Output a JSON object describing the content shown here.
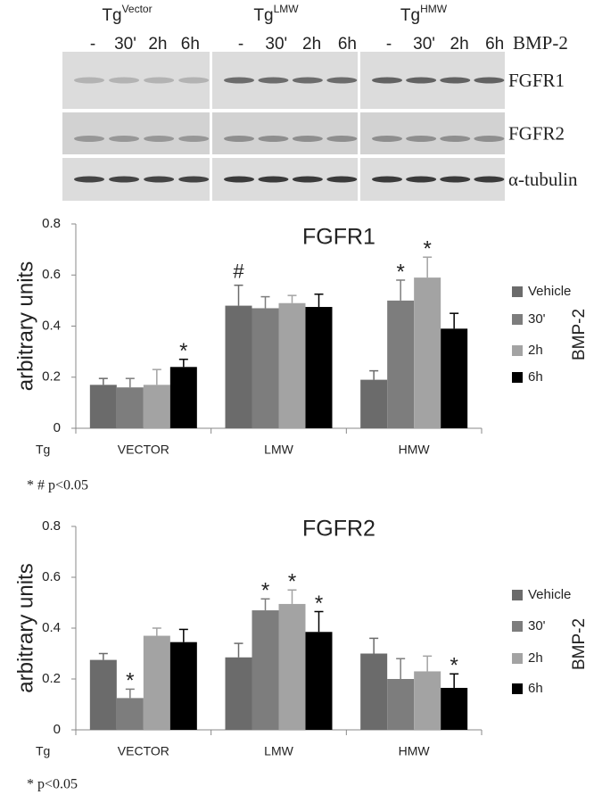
{
  "blot": {
    "groups": [
      {
        "name": "Tg",
        "superscript": "Vector"
      },
      {
        "name": "Tg",
        "superscript": "LMW"
      },
      {
        "name": "Tg",
        "superscript": "HMW"
      }
    ],
    "lanes": [
      "-",
      "30'",
      "2h",
      "6h"
    ],
    "treatment": "BMP-2",
    "rows": [
      "FGFR1",
      "FGFR2",
      "α-tubulin"
    ]
  },
  "chart_data": [
    {
      "type": "bar",
      "title": "FGFR1",
      "y_label": "arbitrary units",
      "x_label": "Tg",
      "categories": [
        "VECTOR",
        "LMW",
        "HMW"
      ],
      "ylim": [
        0,
        0.8
      ],
      "yticks": [
        0,
        0.2,
        0.4,
        0.6,
        0.8
      ],
      "legend_title": "BMP-2",
      "legend": "right",
      "footnote": "* # p<0.05",
      "series": [
        {
          "name": "Vehicle",
          "color": "#6b6b6b",
          "values": [
            0.17,
            0.48,
            0.19
          ],
          "errors": [
            0.025,
            0.08,
            0.035
          ],
          "markers": [
            null,
            "#",
            null
          ]
        },
        {
          "name": "30'",
          "color": "#7d7d7d",
          "values": [
            0.16,
            0.47,
            0.5
          ],
          "errors": [
            0.035,
            0.045,
            0.08
          ],
          "markers": [
            null,
            null,
            "*"
          ]
        },
        {
          "name": "2h",
          "color": "#a3a3a3",
          "values": [
            0.17,
            0.49,
            0.59
          ],
          "errors": [
            0.06,
            0.03,
            0.08
          ],
          "markers": [
            null,
            null,
            "*"
          ]
        },
        {
          "name": "6h",
          "color": "#000000",
          "values": [
            0.24,
            0.475,
            0.39
          ],
          "errors": [
            0.03,
            0.05,
            0.06
          ],
          "markers": [
            "*",
            null,
            null
          ]
        }
      ]
    },
    {
      "type": "bar",
      "title": "FGFR2",
      "y_label": "arbitrary units",
      "x_label": "Tg",
      "categories": [
        "VECTOR",
        "LMW",
        "HMW"
      ],
      "ylim": [
        0,
        0.8
      ],
      "yticks": [
        0,
        0.2,
        0.4,
        0.6,
        0.8
      ],
      "legend_title": "BMP-2",
      "legend": "right",
      "footnote": "* p<0.05",
      "series": [
        {
          "name": "Vehicle",
          "color": "#6b6b6b",
          "values": [
            0.275,
            0.285,
            0.3
          ],
          "errors": [
            0.025,
            0.055,
            0.06
          ],
          "markers": [
            null,
            null,
            null
          ]
        },
        {
          "name": "30'",
          "color": "#7d7d7d",
          "values": [
            0.125,
            0.47,
            0.2
          ],
          "errors": [
            0.035,
            0.045,
            0.08
          ],
          "markers": [
            "*",
            "*",
            null
          ]
        },
        {
          "name": "2h",
          "color": "#a3a3a3",
          "values": [
            0.37,
            0.495,
            0.23
          ],
          "errors": [
            0.03,
            0.055,
            0.06
          ],
          "markers": [
            null,
            "*",
            null
          ]
        },
        {
          "name": "6h",
          "color": "#000000",
          "values": [
            0.345,
            0.385,
            0.165
          ],
          "errors": [
            0.05,
            0.08,
            0.055
          ],
          "markers": [
            null,
            "*",
            "*"
          ]
        }
      ]
    }
  ]
}
